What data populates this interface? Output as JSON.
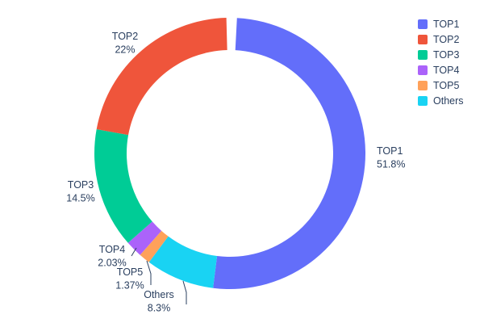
{
  "chart_data": {
    "type": "pie",
    "subtype": "donut",
    "hole": 0.76,
    "direction": "clockwise",
    "start_angle": "top",
    "labels": [
      "TOP1",
      "TOP2",
      "TOP3",
      "TOP4",
      "TOP5",
      "Others"
    ],
    "values": [
      51.8,
      22,
      14.5,
      2.03,
      1.37,
      8.3
    ],
    "pct_labels": [
      "51.8%",
      "22%",
      "14.5%",
      "2.03%",
      "1.37%",
      "8.3%"
    ],
    "colors": [
      "#636efa",
      "#ef553b",
      "#00cc96",
      "#ab63fa",
      "#ffa15a",
      "#19d3f3"
    ],
    "text_color": "#2a3f5f",
    "title": "",
    "legend": {
      "position": "top-right",
      "entries": [
        "TOP1",
        "TOP2",
        "TOP3",
        "TOP4",
        "TOP5",
        "Others"
      ]
    }
  }
}
